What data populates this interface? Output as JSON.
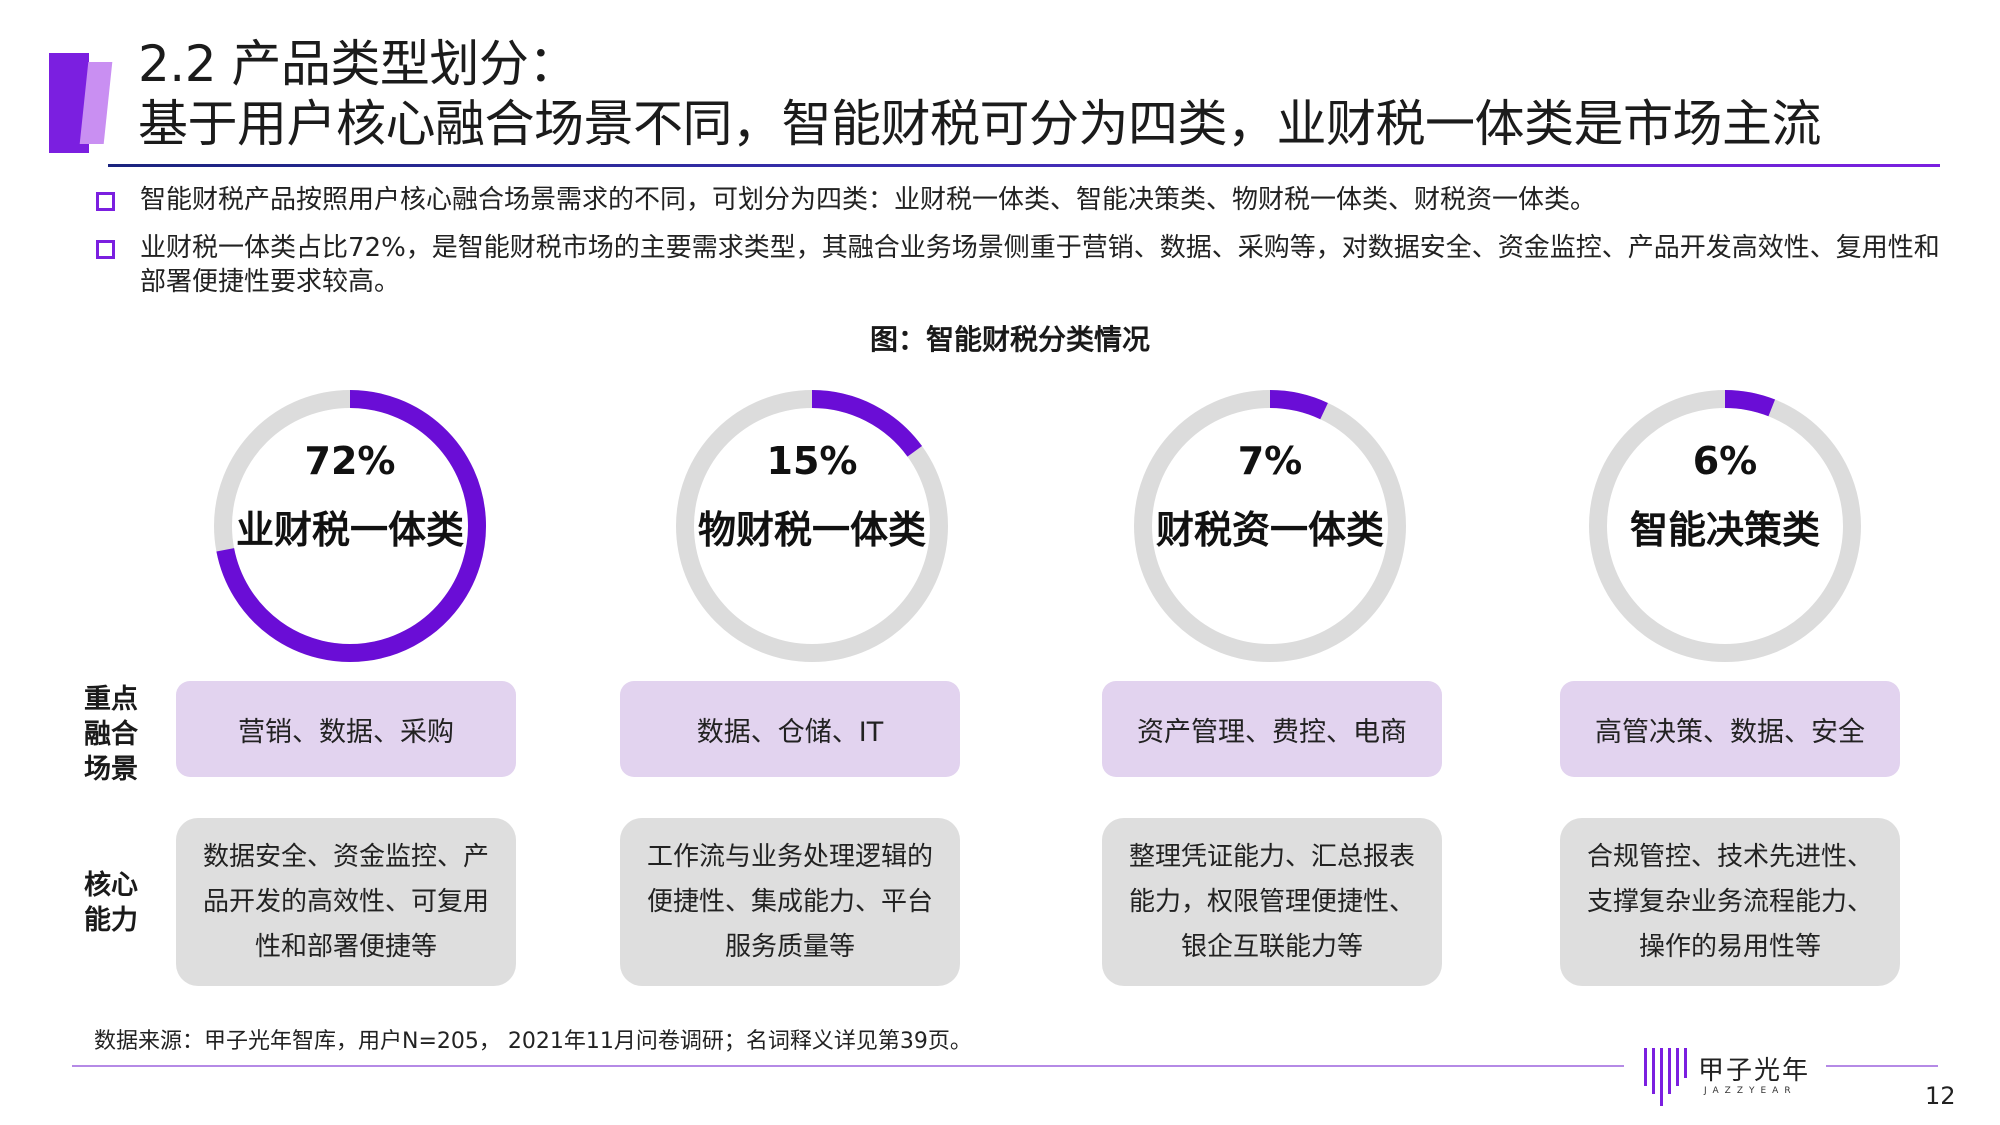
{
  "header": {
    "title_line1": "2.2 产品类型划分：",
    "title_line2": "基于用户核心融合场景不同，智能财税可分为四类，业财税一体类是市场主流"
  },
  "bullets": [
    "智能财税产品按照用户核心融合场景需求的不同，可划分为四类：业财税一体类、智能决策类、物财税一体类、财税资一体类。",
    "业财税一体类占比72%，是智能财税市场的主要需求类型，其融合业务场景侧重于营销、数据、采购等，对数据安全、资金监控、产品开发高效性、复用性和部署便捷性要求较高。"
  ],
  "figure_caption": "图：智能财税分类情况",
  "row_labels": {
    "scenes": "重点融合场景",
    "capabilities": "核心能力"
  },
  "colors": {
    "accent": "#6a0dd6",
    "ring_track": "#dcdcdc",
    "scene_box": "#e2d3ef",
    "capability_box": "#dedede"
  },
  "chart_data": {
    "type": "pie",
    "categories": [
      "业财税一体类",
      "物财税一体类",
      "财税资一体类",
      "智能决策类"
    ],
    "values": [
      72,
      15,
      7,
      6
    ],
    "value_labels": [
      "72%",
      "15%",
      "7%",
      "6%"
    ],
    "unit": "%"
  },
  "categories": [
    {
      "name": "业财税一体类",
      "percent_label": "72%",
      "scenes": "营销、数据、采购",
      "capability_lines": [
        "数据安全、资金监控、产",
        "品开发的高效性、可复用",
        "性和部署便捷等"
      ]
    },
    {
      "name": "物财税一体类",
      "percent_label": "15%",
      "scenes": "数据、仓储、IT",
      "capability_lines": [
        "工作流与业务处理逻辑的",
        "便捷性、集成能力、平台",
        "服务质量等"
      ]
    },
    {
      "name": "财税资一体类",
      "percent_label": "7%",
      "scenes": "资产管理、费控、电商",
      "capability_lines": [
        "整理凭证能力、汇总报表",
        "能力，权限管理便捷性、",
        "银企互联能力等"
      ]
    },
    {
      "name": "智能决策类",
      "percent_label": "6%",
      "scenes": "高管决策、数据、安全",
      "capability_lines": [
        "合规管控、技术先进性、",
        "支撑复杂业务流程能力、",
        "操作的易用性等"
      ]
    }
  ],
  "footer": {
    "source": "数据来源：甲子光年智库，用户N=205， 2021年11月问卷调研；名词释义详见第39页。",
    "logo_cn": "甲子光年",
    "logo_en": "JAZZYEAR",
    "page_number": "12"
  }
}
